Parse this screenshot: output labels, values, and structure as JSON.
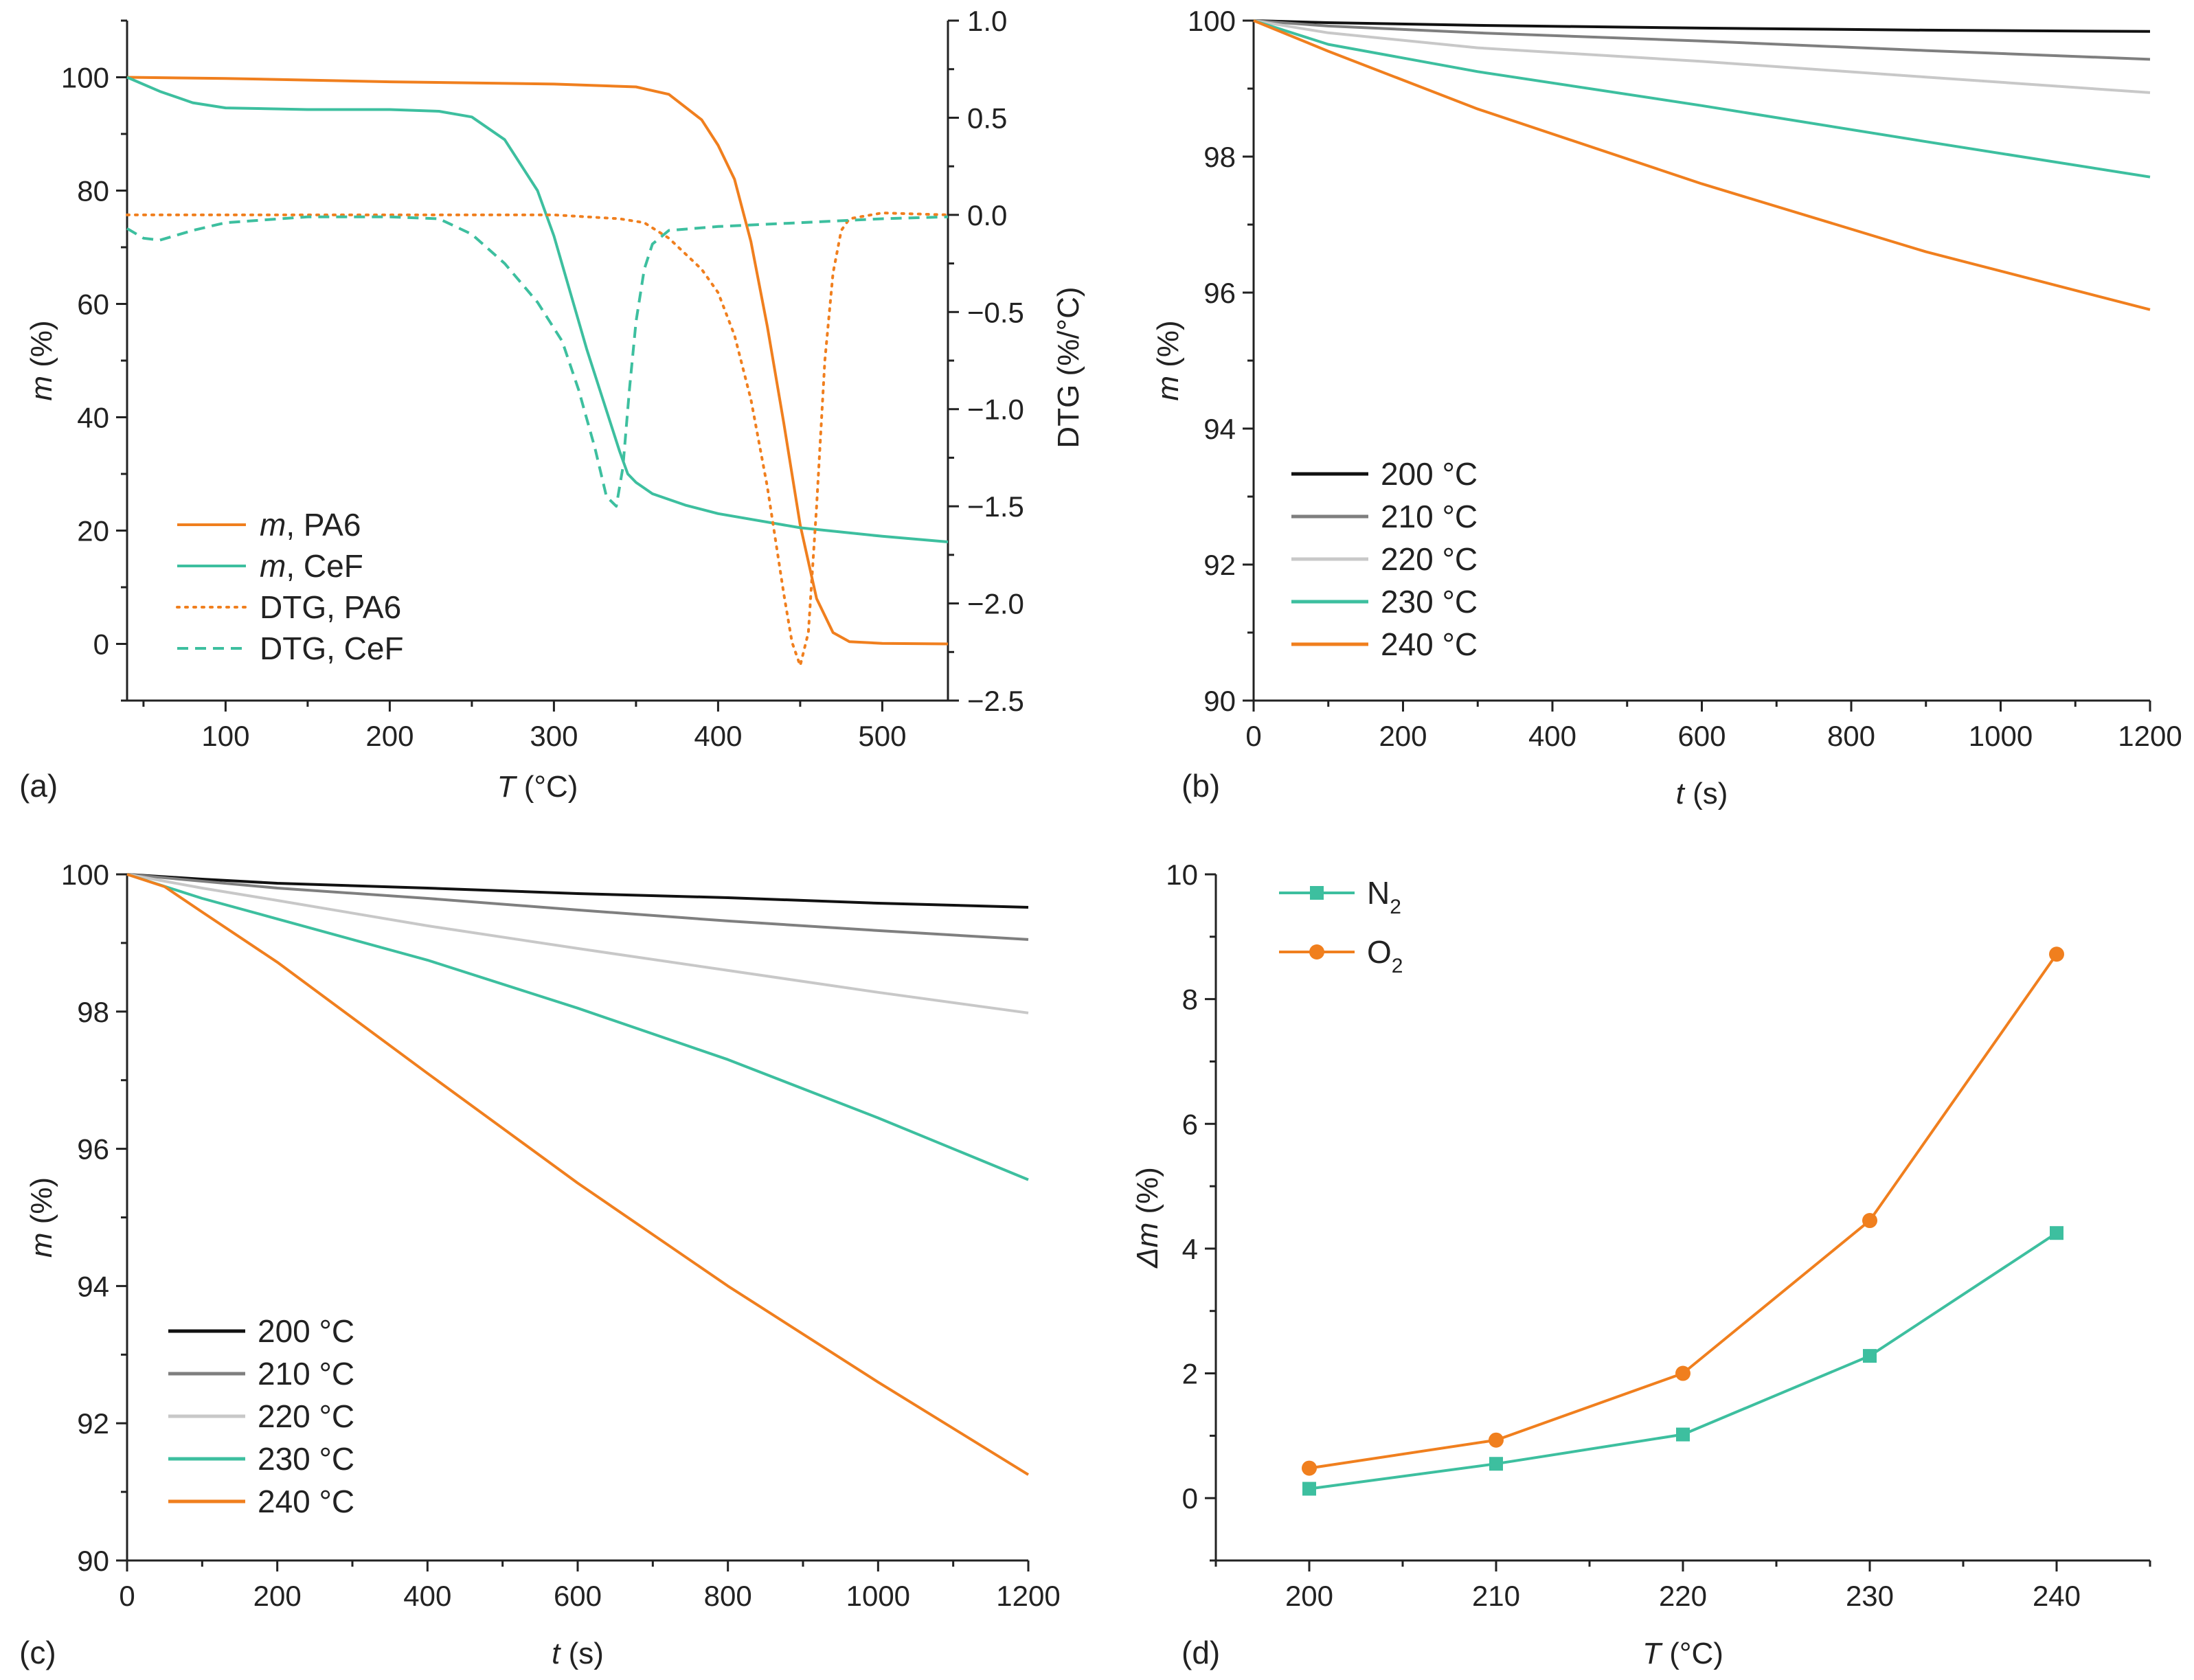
{
  "chart_data": [
    {
      "panel": "(a)",
      "type": "line",
      "xlabel_var": "T",
      "xlabel_unit": " (°C)",
      "ylabel_var": "m",
      "ylabel_unit": " (%)",
      "y2label": "DTG (%/°C)",
      "xlim": [
        40,
        540
      ],
      "ylim": [
        -10,
        110
      ],
      "y2lim": [
        -2.5,
        1.0
      ],
      "xticks": [
        "100",
        "200",
        "300",
        "400",
        "500"
      ],
      "yticks": [
        "0",
        "20",
        "40",
        "60",
        "80",
        "100"
      ],
      "y2ticks": [
        "1.0",
        "0.5",
        "0.0",
        "−0.5",
        "−1.0",
        "−1.5",
        "−2.0",
        "−2.5"
      ],
      "legend_position": "bottom-left",
      "series": [
        {
          "name_var": "m",
          "name_rest": ", PA6",
          "color": "#f07f1e",
          "style": "solid",
          "axis": "left",
          "x": [
            40,
            100,
            200,
            300,
            350,
            370,
            390,
            400,
            410,
            420,
            430,
            440,
            450,
            460,
            470,
            480,
            500,
            540
          ],
          "y": [
            100,
            99.8,
            99.2,
            98.8,
            98.3,
            97.0,
            92.5,
            88.0,
            82.0,
            71.0,
            56.0,
            39.0,
            21.0,
            8.0,
            2.0,
            0.4,
            0.1,
            0.0
          ]
        },
        {
          "name_var": "m",
          "name_rest": ", CeF",
          "color": "#3dbf9f",
          "style": "solid",
          "axis": "left",
          "x": [
            40,
            60,
            80,
            100,
            150,
            200,
            230,
            250,
            270,
            290,
            300,
            310,
            320,
            330,
            340,
            345,
            350,
            360,
            380,
            400,
            450,
            500,
            540
          ],
          "y": [
            100,
            97.5,
            95.5,
            94.6,
            94.3,
            94.3,
            94.0,
            93.0,
            89.0,
            80.0,
            72.0,
            62.0,
            52.0,
            43.0,
            34.0,
            30.0,
            28.5,
            26.5,
            24.5,
            23.0,
            20.5,
            19.0,
            18.0
          ]
        },
        {
          "name_var": "",
          "name_rest": "DTG, PA6",
          "color": "#f07f1e",
          "style": "dotted",
          "axis": "right",
          "x": [
            40,
            100,
            200,
            300,
            340,
            355,
            370,
            390,
            400,
            410,
            420,
            430,
            440,
            445,
            450,
            455,
            460,
            465,
            470,
            475,
            480,
            500,
            540
          ],
          "y": [
            0.0,
            0.0,
            0.0,
            0.0,
            -0.02,
            -0.04,
            -0.12,
            -0.28,
            -0.4,
            -0.62,
            -0.95,
            -1.4,
            -1.95,
            -2.2,
            -2.32,
            -2.15,
            -1.5,
            -0.75,
            -0.3,
            -0.08,
            -0.02,
            0.01,
            0.0
          ]
        },
        {
          "name_var": "",
          "name_rest": "DTG, CeF",
          "color": "#3dbf9f",
          "style": "dashed",
          "axis": "right",
          "x": [
            40,
            50,
            60,
            80,
            100,
            150,
            200,
            230,
            250,
            270,
            290,
            305,
            315,
            325,
            332,
            338,
            342,
            346,
            350,
            355,
            360,
            370,
            400,
            450,
            500,
            540
          ],
          "y": [
            -0.07,
            -0.12,
            -0.13,
            -0.08,
            -0.04,
            -0.01,
            -0.01,
            -0.02,
            -0.1,
            -0.25,
            -0.45,
            -0.65,
            -0.9,
            -1.2,
            -1.45,
            -1.5,
            -1.3,
            -0.9,
            -0.55,
            -0.28,
            -0.15,
            -0.08,
            -0.06,
            -0.04,
            -0.02,
            -0.01
          ]
        }
      ]
    },
    {
      "panel": "(b)",
      "type": "line",
      "xlabel_var": "t",
      "xlabel_unit": " (s)",
      "ylabel_var": "m",
      "ylabel_unit": " (%)",
      "xlim": [
        0,
        1200
      ],
      "ylim": [
        90,
        100
      ],
      "xticks": [
        "0",
        "200",
        "400",
        "600",
        "800",
        "1000",
        "1200"
      ],
      "yticks": [
        "90",
        "92",
        "94",
        "96",
        "98",
        "100"
      ],
      "legend_position": "middle-left",
      "series": [
        {
          "name": "200 °C",
          "color": "#111111",
          "x": [
            0,
            100,
            300,
            600,
            900,
            1200
          ],
          "y": [
            100,
            99.97,
            99.93,
            99.89,
            99.86,
            99.84
          ]
        },
        {
          "name": "210 °C",
          "color": "#7f7f7f",
          "x": [
            0,
            100,
            300,
            600,
            900,
            1200
          ],
          "y": [
            100,
            99.92,
            99.82,
            99.7,
            99.56,
            99.43
          ]
        },
        {
          "name": "220 °C",
          "color": "#c8c8c8",
          "x": [
            0,
            100,
            300,
            600,
            900,
            1200
          ],
          "y": [
            100,
            99.82,
            99.6,
            99.4,
            99.17,
            98.94
          ]
        },
        {
          "name": "230 °C",
          "color": "#3dbf9f",
          "x": [
            0,
            100,
            300,
            600,
            900,
            1200
          ],
          "y": [
            100,
            99.65,
            99.25,
            98.75,
            98.22,
            97.7
          ]
        },
        {
          "name": "240 °C",
          "color": "#f07f1e",
          "x": [
            0,
            100,
            300,
            600,
            900,
            1200
          ],
          "y": [
            100,
            99.55,
            98.7,
            97.6,
            96.6,
            95.75
          ]
        }
      ]
    },
    {
      "panel": "(c)",
      "type": "line",
      "xlabel_var": "t",
      "xlabel_unit": " (s)",
      "ylabel_var": "m",
      "ylabel_unit": " (%)",
      "xlim": [
        0,
        1200
      ],
      "ylim": [
        90,
        100
      ],
      "xticks": [
        "0",
        "200",
        "400",
        "600",
        "800",
        "1000",
        "1200"
      ],
      "yticks": [
        "90",
        "92",
        "94",
        "96",
        "98",
        "100"
      ],
      "legend_position": "bottom-left",
      "series": [
        {
          "name": "200 °C",
          "color": "#111111",
          "x": [
            0,
            100,
            200,
            400,
            600,
            800,
            1000,
            1200
          ],
          "y": [
            100,
            99.93,
            99.87,
            99.8,
            99.72,
            99.66,
            99.58,
            99.52
          ]
        },
        {
          "name": "210 °C",
          "color": "#7f7f7f",
          "x": [
            0,
            100,
            200,
            400,
            600,
            800,
            1000,
            1200
          ],
          "y": [
            100,
            99.9,
            99.8,
            99.65,
            99.48,
            99.32,
            99.18,
            99.05
          ]
        },
        {
          "name": "220 °C",
          "color": "#c8c8c8",
          "x": [
            0,
            100,
            200,
            400,
            600,
            800,
            1000,
            1200
          ],
          "y": [
            100,
            99.8,
            99.62,
            99.25,
            98.92,
            98.6,
            98.28,
            97.98
          ]
        },
        {
          "name": "230 °C",
          "color": "#3dbf9f",
          "x": [
            0,
            100,
            200,
            400,
            600,
            800,
            1000,
            1200
          ],
          "y": [
            100,
            99.65,
            99.35,
            98.75,
            98.05,
            97.3,
            96.45,
            95.55
          ]
        },
        {
          "name": "240 °C",
          "color": "#f07f1e",
          "x": [
            0,
            50,
            100,
            200,
            400,
            600,
            800,
            1000,
            1200
          ],
          "y": [
            100,
            99.82,
            99.45,
            98.72,
            97.1,
            95.5,
            94.0,
            92.6,
            91.25
          ]
        }
      ]
    },
    {
      "panel": "(d)",
      "type": "line",
      "xlabel_var": "T",
      "xlabel_unit": " (°C)",
      "ylabel_var": "Δm",
      "ylabel_unit": " (%)",
      "xlim": [
        195,
        245
      ],
      "ylim": [
        -1,
        10
      ],
      "xticks": [
        "200",
        "210",
        "220",
        "230",
        "240"
      ],
      "yticks": [
        "0",
        "2",
        "4",
        "6",
        "8",
        "10"
      ],
      "legend_position": "top-left",
      "series": [
        {
          "name": "N",
          "sub": "2",
          "color": "#3dbf9f",
          "marker": "square",
          "x": [
            200,
            210,
            220,
            230,
            240
          ],
          "y": [
            0.15,
            0.55,
            1.02,
            2.28,
            4.25
          ]
        },
        {
          "name": "O",
          "sub": "2",
          "color": "#f07f1e",
          "marker": "circle",
          "x": [
            200,
            210,
            220,
            230,
            240
          ],
          "y": [
            0.48,
            0.93,
            2.0,
            4.45,
            8.72
          ]
        }
      ]
    }
  ]
}
